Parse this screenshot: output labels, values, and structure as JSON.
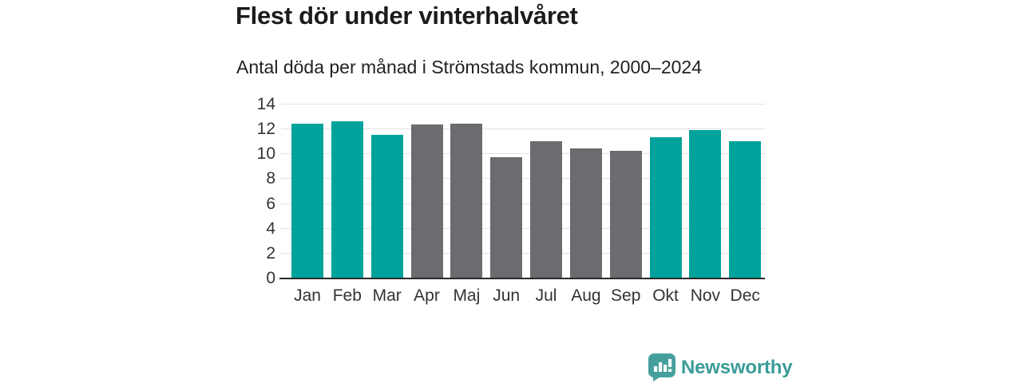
{
  "title": "Flest dör under vinterhalvåret",
  "subtitle": "Antal döda per månad i Strömstads kommun, 2000–2024",
  "branding": {
    "logo_text": "Newsworthy",
    "logo_icon": "newsworthy-speech-bubble-bar-chart-icon",
    "logo_color": "#3a9b98"
  },
  "colors": {
    "winter": "#00a39b",
    "summer": "#6b6b70",
    "gridline": "#e2e2e2",
    "axis": "#2a2a2a",
    "tick_text": "#333333"
  },
  "chart_data": {
    "type": "bar",
    "title": "Flest dör under vinterhalvåret",
    "subtitle": "Antal döda per månad i Strömstads kommun, 2000–2024",
    "categories": [
      "Jan",
      "Feb",
      "Mar",
      "Apr",
      "Maj",
      "Jun",
      "Jul",
      "Aug",
      "Sep",
      "Okt",
      "Nov",
      "Dec"
    ],
    "values": [
      12.4,
      12.6,
      11.5,
      12.3,
      12.4,
      9.7,
      11.0,
      10.4,
      10.2,
      11.3,
      11.9,
      11.0
    ],
    "bar_colors": [
      "winter",
      "winter",
      "winter",
      "summer",
      "summer",
      "summer",
      "summer",
      "summer",
      "summer",
      "winter",
      "winter",
      "winter"
    ],
    "xlabel": "",
    "ylabel": "",
    "ylim": [
      0,
      14
    ],
    "yticks": [
      0,
      2,
      4,
      6,
      8,
      10,
      12,
      14
    ],
    "grid": true,
    "legend_position": "none"
  }
}
